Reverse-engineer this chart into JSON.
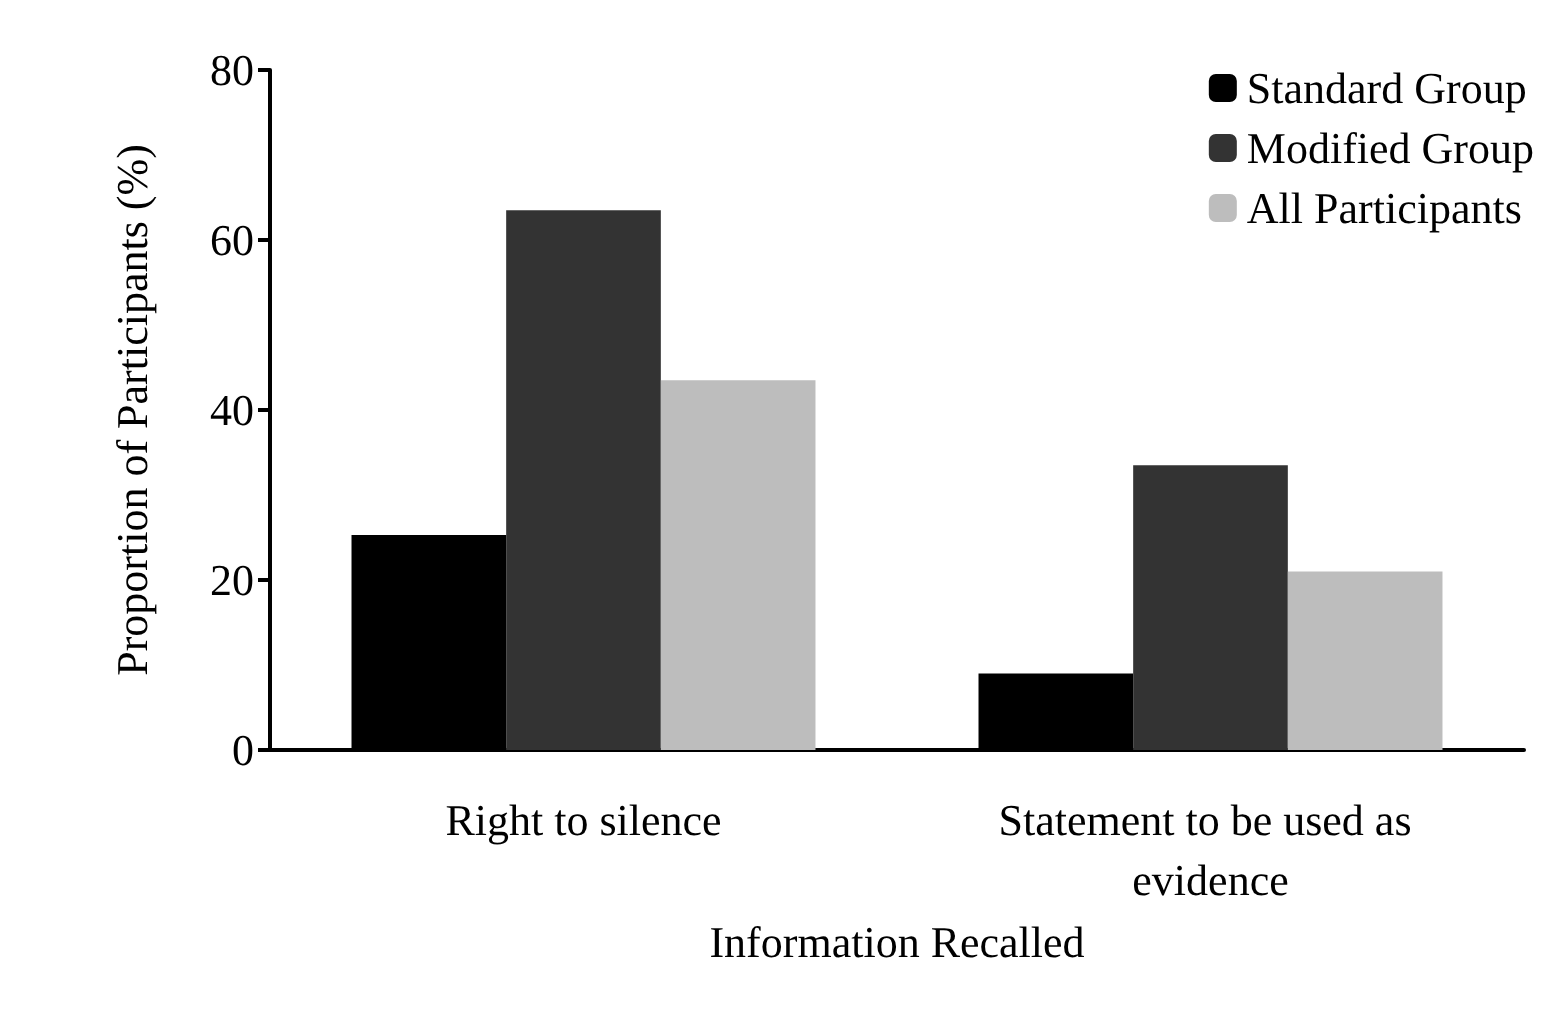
{
  "chart_data": {
    "type": "bar",
    "xlabel": "Information Recalled",
    "ylabel": "Proportion of Participants (%)",
    "categories": [
      "Right to silence",
      "Statement to be used as evidence"
    ],
    "series": [
      {
        "name": "Standard Group",
        "color": "#000000",
        "values": [
          25.3,
          9.0
        ]
      },
      {
        "name": "Modified Group",
        "color": "#333333",
        "values": [
          63.5,
          33.5
        ]
      },
      {
        "name": "All Participants",
        "color": "#bdbdbd",
        "values": [
          43.5,
          21.0
        ]
      }
    ],
    "ylim": [
      0,
      80
    ],
    "yticks": [
      0,
      20,
      40,
      60,
      80
    ],
    "grid": false,
    "legend": "top right"
  }
}
